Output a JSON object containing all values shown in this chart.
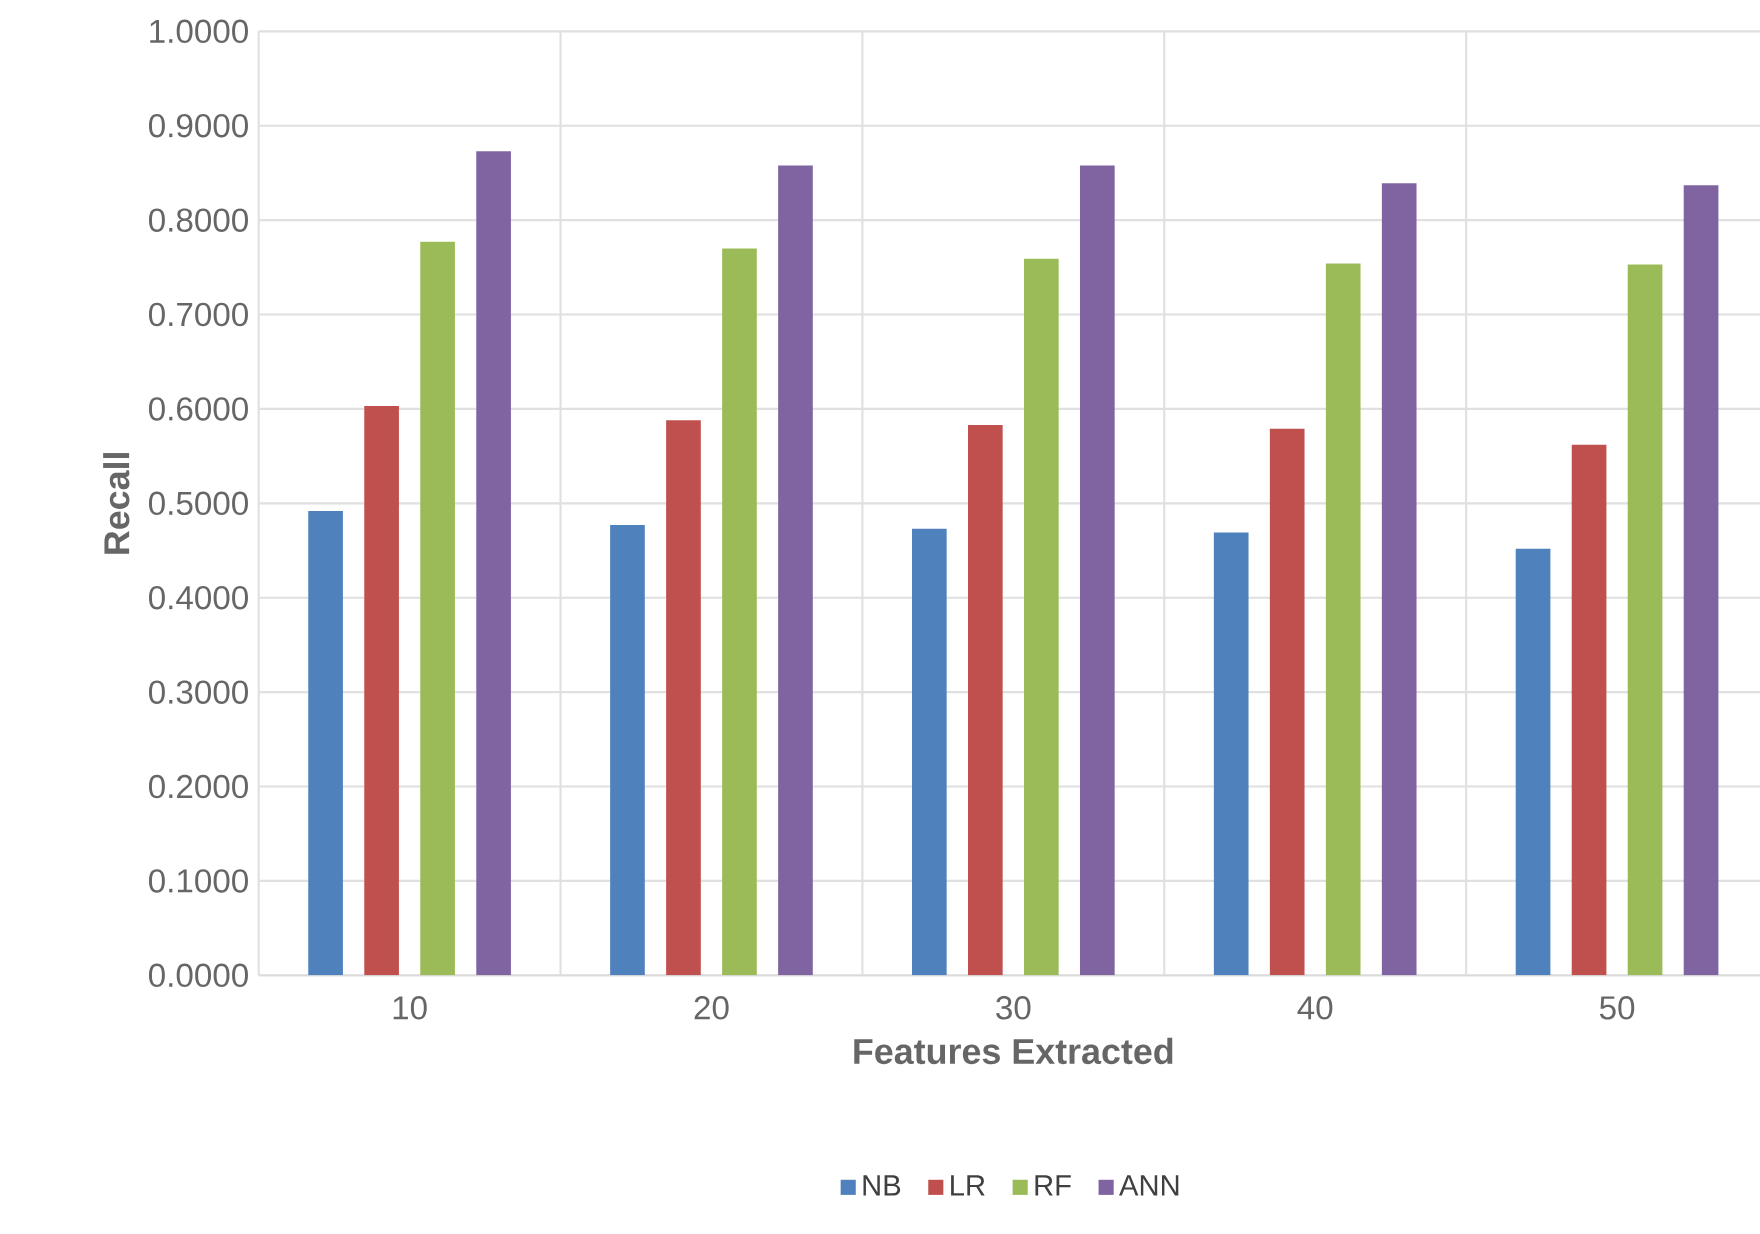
{
  "chart_data": {
    "type": "bar",
    "xlabel": "Features Extracted",
    "ylabel": "Recall",
    "categories": [
      "10",
      "20",
      "30",
      "40",
      "50"
    ],
    "series": [
      {
        "name": "NB",
        "color": "#4f81bd",
        "values": [
          0.492,
          0.477,
          0.473,
          0.469,
          0.452
        ]
      },
      {
        "name": "LR",
        "color": "#c0504d",
        "values": [
          0.603,
          0.588,
          0.583,
          0.579,
          0.562
        ]
      },
      {
        "name": "RF",
        "color": "#9bbb59",
        "values": [
          0.777,
          0.77,
          0.759,
          0.754,
          0.753
        ]
      },
      {
        "name": "ANN",
        "color": "#8064a2",
        "values": [
          0.873,
          0.858,
          0.858,
          0.839,
          0.837
        ]
      }
    ],
    "ylim": [
      0,
      1
    ],
    "yticks": [
      {
        "value": 0,
        "label": "0.0000"
      },
      {
        "value": 0.1,
        "label": "0.1000"
      },
      {
        "value": 0.2,
        "label": "0.2000"
      },
      {
        "value": 0.3,
        "label": "0.3000"
      },
      {
        "value": 0.4,
        "label": "0.4000"
      },
      {
        "value": 0.5,
        "label": "0.5000"
      },
      {
        "value": 0.6,
        "label": "0.6000"
      },
      {
        "value": 0.7,
        "label": "0.7000"
      },
      {
        "value": 0.8,
        "label": "0.8000"
      },
      {
        "value": 0.9,
        "label": "0.9000"
      },
      {
        "value": 1,
        "label": "1.0000"
      }
    ],
    "grid": true,
    "legend": "bottom"
  }
}
